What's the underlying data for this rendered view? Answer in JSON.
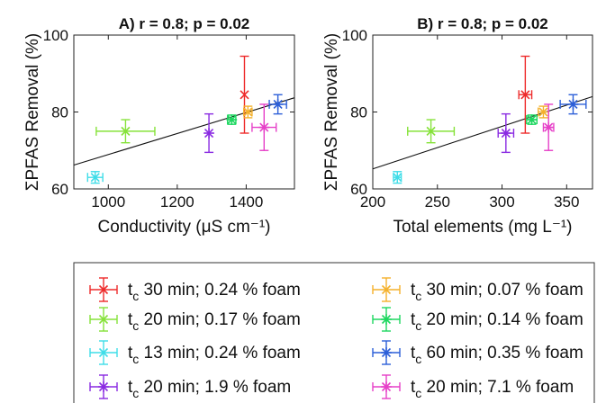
{
  "chart_data": [
    {
      "type": "scatter",
      "title": "A) r = 0.8; p = 0.02",
      "xlabel": "Conductivity (μS cm⁻¹)",
      "ylabel": "ΣPFAS Removal (%)",
      "xlim": [
        900,
        1540
      ],
      "ylim": [
        60,
        100
      ],
      "xticks": [
        1000,
        1200,
        1400
      ],
      "yticks": [
        60,
        80,
        100
      ],
      "fit_line": {
        "x": [
          900,
          1540
        ],
        "y": [
          66.2,
          83.7
        ]
      },
      "points": [
        {
          "series": "tc 30 min; 0.24 % foam",
          "marker": "x",
          "x": 1395,
          "y": 84.5,
          "xerr": 0,
          "yerr": 10.0
        },
        {
          "series": "tc 20 min; 0.17 % foam",
          "marker": "x",
          "x": 1050,
          "y": 75,
          "xerr": 85,
          "yerr": 3
        },
        {
          "series": "tc 13 min; 0.24 % foam",
          "marker": "x",
          "x": 962,
          "y": 63,
          "xerr": 22,
          "yerr": 1.5
        },
        {
          "series": "tc 20 min; 1.9 % foam",
          "marker": "*",
          "x": 1292,
          "y": 74.5,
          "xerr": 0,
          "yerr": 5
        },
        {
          "series": "tc 30 min; 0.07 % foam",
          "marker": "x",
          "x": 1405,
          "y": 80,
          "xerr": 12,
          "yerr": 1.5
        },
        {
          "series": "tc 20 min; 0.14 % foam",
          "marker": "*",
          "x": 1358,
          "y": 78,
          "xerr": 12,
          "yerr": 1.2
        },
        {
          "series": "tc 60 min; 0.35 % foam",
          "marker": "*",
          "x": 1492,
          "y": 82,
          "xerr": 25,
          "yerr": 2.5
        },
        {
          "series": "tc 20 min; 7.1 % foam",
          "marker": "*",
          "x": 1452,
          "y": 76,
          "xerr": 35,
          "yerr": 6
        }
      ]
    },
    {
      "type": "scatter",
      "title": "B) r = 0.8; p = 0.02",
      "xlabel": "Total elements (mg L⁻¹)",
      "ylabel": "ΣPFAS Removal (%)",
      "xlim": [
        200,
        370
      ],
      "ylim": [
        60,
        100
      ],
      "xticks": [
        200,
        250,
        300,
        350
      ],
      "yticks": [
        60,
        80,
        100
      ],
      "fit_line": {
        "x": [
          200,
          370
        ],
        "y": [
          65.2,
          84.0
        ]
      },
      "points": [
        {
          "series": "tc 30 min; 0.24 % foam",
          "marker": "x",
          "x": 318,
          "y": 84.5,
          "xerr": 5,
          "yerr": 10.0
        },
        {
          "series": "tc 20 min; 0.17 % foam",
          "marker": "x",
          "x": 245,
          "y": 75,
          "xerr": 18,
          "yerr": 3
        },
        {
          "series": "tc 13 min; 0.24 % foam",
          "marker": "x",
          "x": 219,
          "y": 63,
          "xerr": 3,
          "yerr": 1.5
        },
        {
          "series": "tc 20 min; 1.9 % foam",
          "marker": "*",
          "x": 303,
          "y": 74.5,
          "xerr": 6,
          "yerr": 5
        },
        {
          "series": "tc 30 min; 0.07 % foam",
          "marker": "x",
          "x": 332,
          "y": 80,
          "xerr": 4,
          "yerr": 1.5
        },
        {
          "series": "tc 20 min; 0.14 % foam",
          "marker": "*",
          "x": 323,
          "y": 78,
          "xerr": 4,
          "yerr": 1.2
        },
        {
          "series": "tc 60 min; 0.35 % foam",
          "marker": "*",
          "x": 355,
          "y": 82,
          "xerr": 10,
          "yerr": 2.5
        },
        {
          "series": "tc 20 min; 7.1 % foam",
          "marker": "*",
          "x": 336,
          "y": 76,
          "xerr": 4,
          "yerr": 6
        }
      ]
    }
  ],
  "legend": [
    {
      "sub": "c",
      "text": " 30 min; 0.24 % foam",
      "color": "#ee2b2b",
      "marker": "x"
    },
    {
      "sub": "c",
      "text": " 30 min; 0.07 % foam",
      "color": "#f4b12c",
      "marker": "x"
    },
    {
      "sub": "c",
      "text": " 20 min; 0.17 % foam",
      "color": "#86e23a",
      "marker": "x"
    },
    {
      "sub": "c",
      "text": " 20 min; 0.14 % foam",
      "color": "#1ed760",
      "marker": "*"
    },
    {
      "sub": "c",
      "text": " 13 min; 0.24 % foam",
      "color": "#3fdde8",
      "marker": "x"
    },
    {
      "sub": "c",
      "text": " 60 min; 0.35 % foam",
      "color": "#2c5fd8",
      "marker": "*"
    },
    {
      "sub": "c",
      "text": " 20 min; 1.9 % foam",
      "color": "#8a2be2",
      "marker": "*"
    },
    {
      "sub": "c",
      "text": " 20 min; 7.1 % foam",
      "color": "#e640c8",
      "marker": "*"
    }
  ],
  "series_colors": {
    "tc 30 min; 0.24 % foam": "#ee2b2b",
    "tc 20 min; 0.17 % foam": "#86e23a",
    "tc 13 min; 0.24 % foam": "#3fdde8",
    "tc 20 min; 1.9 % foam": "#8a2be2",
    "tc 30 min; 0.07 % foam": "#f4b12c",
    "tc 20 min; 0.14 % foam": "#1ed760",
    "tc 60 min; 0.35 % foam": "#2c5fd8",
    "tc 20 min; 7.1 % foam": "#e640c8"
  }
}
